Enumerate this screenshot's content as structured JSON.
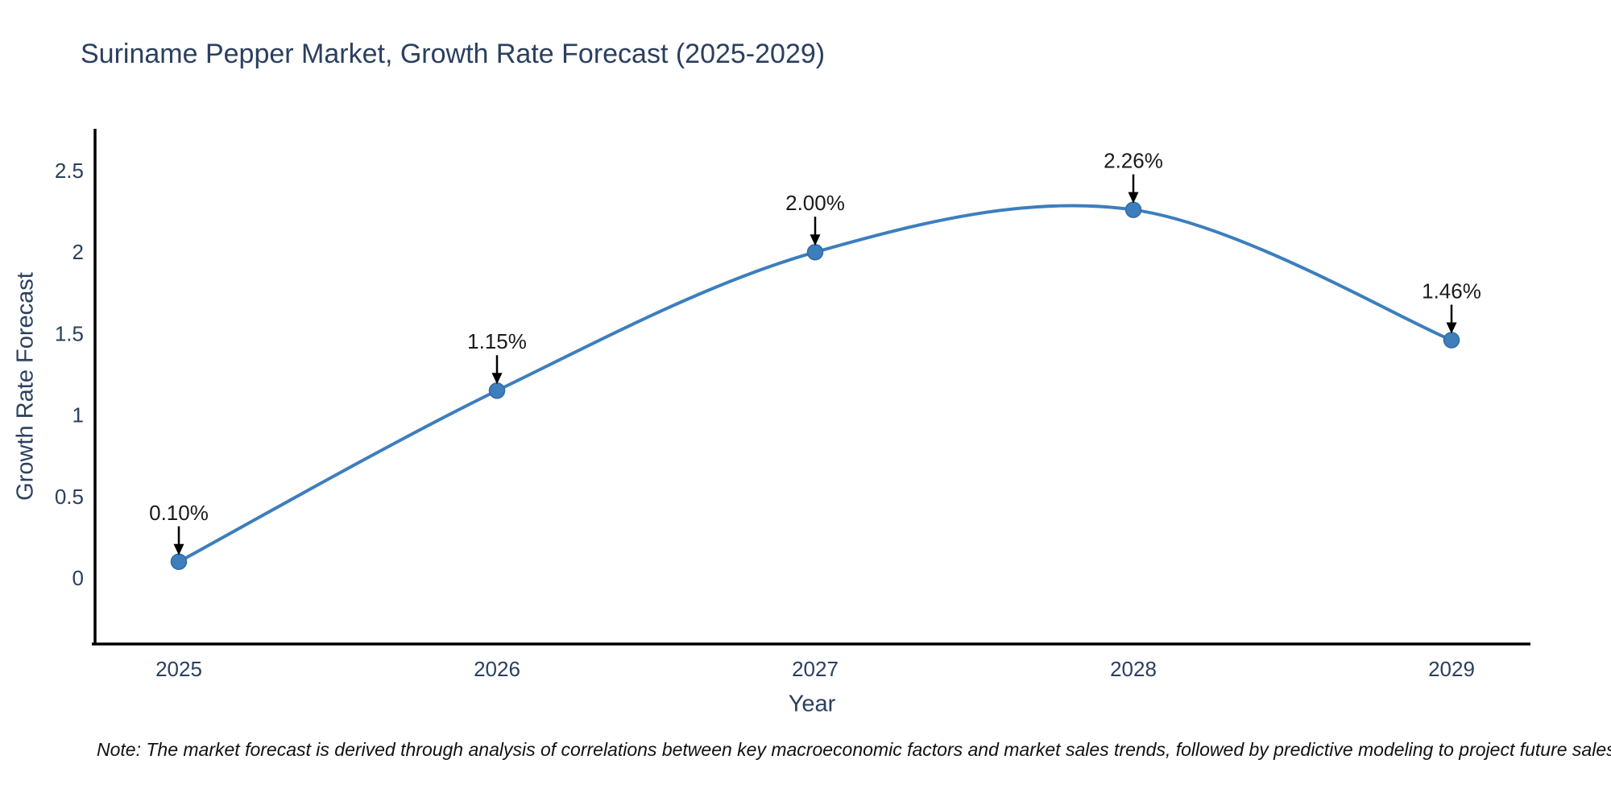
{
  "note": "Note: The market forecast is derived through analysis of correlations between key macroeconomic factors and market sales trends, followed by predictive modeling to project future sales",
  "colors": {
    "line": "#3d7ebd",
    "marker_fill": "#3d7ebd",
    "marker_edge": "#2f6ca3",
    "axis_line": "#000000",
    "text": "#2a3f5f",
    "annotation_text": "#1a1a1a",
    "arrow": "#000000",
    "background": "#ffffff"
  },
  "chart_data": {
    "type": "line",
    "title": "Suriname Pepper Market, Growth Rate Forecast (2025-2029)",
    "xlabel": "Year",
    "ylabel": "Growth Rate Forecast",
    "x": [
      2025,
      2026,
      2027,
      2028,
      2029
    ],
    "series": [
      {
        "name": "Growth Rate Forecast",
        "values": [
          0.1,
          1.15,
          2.0,
          2.26,
          1.46
        ]
      }
    ],
    "point_labels": [
      "0.10%",
      "1.15%",
      "2.00%",
      "2.26%",
      "1.46%"
    ],
    "yticks": [
      0,
      0.5,
      1,
      1.5,
      2,
      2.5
    ],
    "ylim": [
      -0.41,
      2.76
    ],
    "line_shape": "spline",
    "markers": true,
    "grid": false,
    "legend": "none",
    "annotations": "downward arrows pointing at each data point with percent labels above"
  }
}
